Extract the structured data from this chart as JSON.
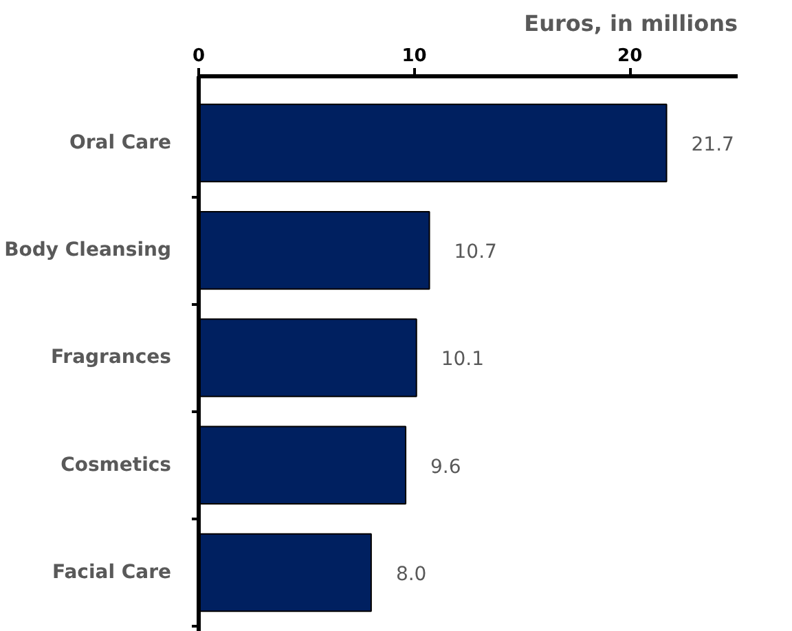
{
  "chart_data": {
    "type": "bar",
    "orientation": "horizontal",
    "xlabel": "Euros, in millions",
    "categories": [
      "Oral Care",
      "Body Cleansing",
      "Fragrances",
      "Cosmetics",
      "Facial Care"
    ],
    "values": [
      21.7,
      10.7,
      10.1,
      9.6,
      8.0
    ],
    "value_labels": [
      "21.7",
      "10.7",
      "10.1",
      "9.6",
      "8.0"
    ],
    "color": "#002060",
    "xlim": [
      0,
      25
    ],
    "xticks": [
      0,
      10,
      20
    ],
    "grid": false
  }
}
